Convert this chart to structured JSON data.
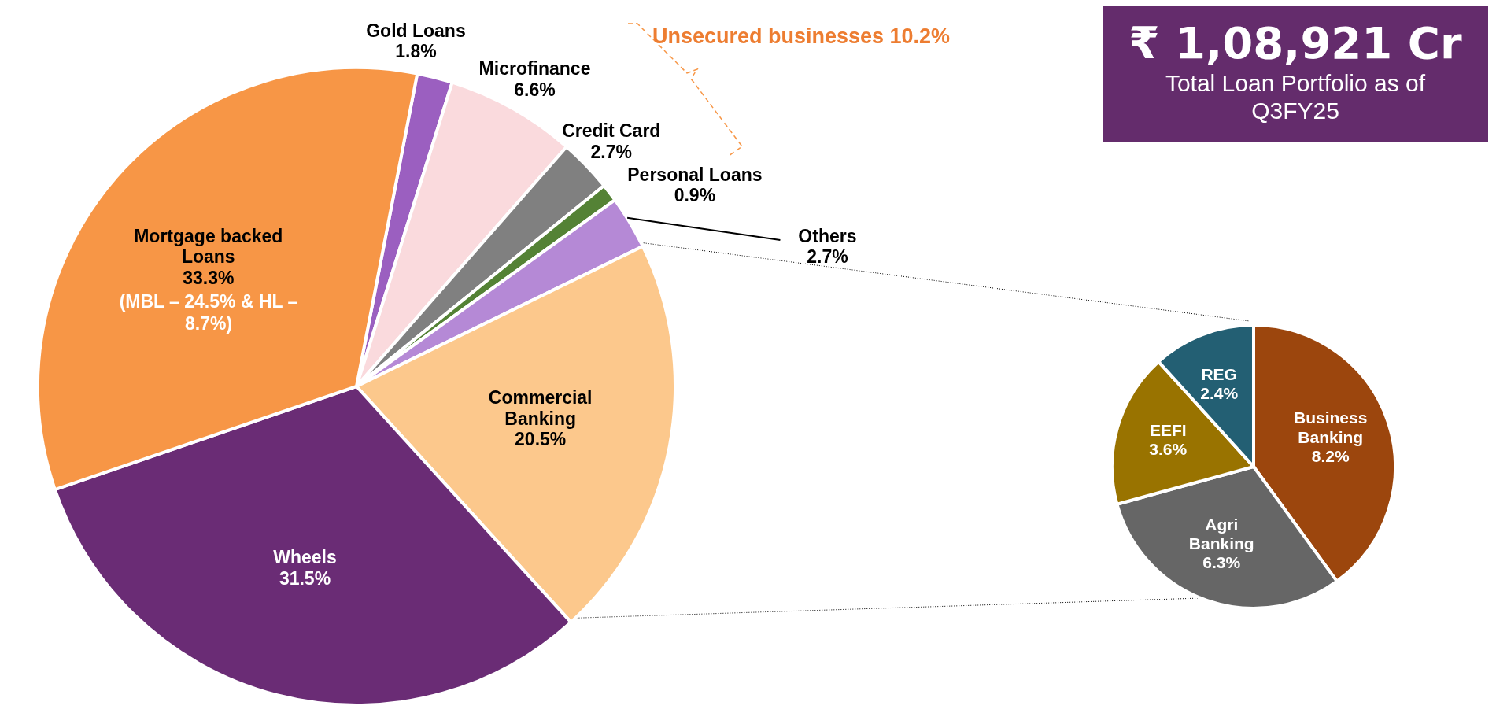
{
  "chart_data": [
    {
      "type": "pie",
      "categories": [
        "Gold Loans",
        "Microfinance",
        "Credit Card",
        "Personal Loans",
        "Others",
        "Commercial Banking",
        "Wheels",
        "Mortgage backed Loans"
      ],
      "values": [
        1.8,
        6.6,
        2.7,
        0.9,
        2.7,
        20.5,
        31.5,
        33.3
      ],
      "value_labels": [
        "1.8%",
        "6.6%",
        "2.7%",
        "0.9%",
        "2.7%",
        "20.5%",
        "31.5%",
        "33.3%"
      ],
      "colors": [
        "#9b5fc0",
        "#fadadd",
        "#808080",
        "#548235",
        "#b589d6",
        "#fcc88c",
        "#6a2c75",
        "#f79646"
      ],
      "annotations": [
        "Unsecured businesses 10.2%",
        "₹ 1,08,921 Cr",
        "Total Loan Portfolio as of Q3FY25",
        "(MBL – 24.5% & HL – 8.7%)"
      ]
    },
    {
      "type": "pie",
      "categories": [
        "Business Banking",
        "Agri Banking",
        "EEFI",
        "REG"
      ],
      "values": [
        8.2,
        6.3,
        3.6,
        2.4
      ],
      "value_labels": [
        "8.2%",
        "6.3%",
        "3.6%",
        "2.4%"
      ],
      "colors": [
        "#9c460d",
        "#666666",
        "#997300",
        "#235f73"
      ]
    }
  ]
}
